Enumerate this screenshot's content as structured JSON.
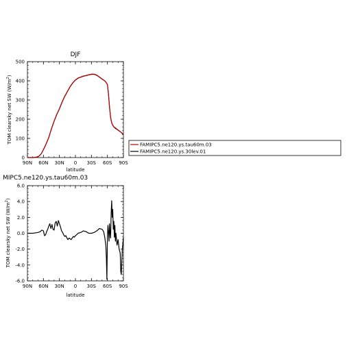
{
  "chart_data": [
    {
      "type": "line",
      "title": "DJF",
      "xlabel": "latitude",
      "ylabel": "TOM clearsky net SW (W/m²)",
      "xlim": [
        90,
        -90
      ],
      "ylim": [
        0,
        500
      ],
      "x_ticks": [
        90,
        60,
        30,
        0,
        -30,
        -60,
        -90
      ],
      "x_tick_labels": [
        "90N",
        "60N",
        "30N",
        "0",
        "30S",
        "60S",
        "90S"
      ],
      "y_ticks": [
        0,
        100,
        200,
        300,
        400,
        500
      ],
      "y_tick_labels": [
        "0",
        "100",
        "200",
        "300",
        "400",
        "500"
      ],
      "grid": false,
      "series": [
        {
          "name": "FAMIPC5.ne120.ys.tau60m.03",
          "color": "#c00000",
          "x": [
            90,
            84,
            78,
            72,
            68,
            64,
            60,
            56,
            50,
            45,
            40,
            35,
            30,
            25,
            20,
            15,
            10,
            5,
            0,
            -5,
            -10,
            -15,
            -20,
            -25,
            -30,
            -35,
            -40,
            -45,
            -50,
            -55,
            -58,
            -60,
            -62,
            -64,
            -66,
            -68,
            -70,
            -72,
            -75,
            -78,
            -82,
            -86,
            -90
          ],
          "values": [
            0,
            0,
            0,
            3,
            8,
            20,
            42,
            65,
            105,
            150,
            190,
            225,
            255,
            290,
            320,
            345,
            370,
            390,
            405,
            415,
            420,
            425,
            428,
            432,
            435,
            435,
            430,
            420,
            410,
            400,
            390,
            380,
            330,
            260,
            210,
            180,
            170,
            160,
            155,
            148,
            140,
            130,
            118
          ]
        },
        {
          "name": "FAMIPC5.ne120.ys.30lev.01",
          "color": "#000000",
          "x": [
            90,
            84,
            78,
            72,
            68,
            64,
            60,
            56,
            50,
            45,
            40,
            35,
            30,
            25,
            20,
            15,
            10,
            5,
            0,
            -5,
            -10,
            -15,
            -20,
            -25,
            -30,
            -35,
            -40,
            -45,
            -50,
            -55,
            -58,
            -60,
            -62,
            -64,
            -66,
            -68,
            -70,
            -72,
            -75,
            -78,
            -82,
            -86,
            -90
          ],
          "values": [
            0,
            0,
            0,
            3,
            8,
            20,
            41,
            64,
            104,
            149,
            189,
            224,
            254,
            289,
            319,
            344,
            369,
            389,
            404,
            414,
            419,
            424,
            427,
            431,
            434,
            434,
            429,
            419,
            409,
            400,
            390,
            380,
            331,
            262,
            208,
            182,
            168,
            160,
            152,
            147,
            139,
            131,
            120
          ]
        }
      ],
      "legend": "right"
    },
    {
      "type": "line",
      "title": "MIPC5.ne120.ys.tau60m.03",
      "xlabel": "latitude",
      "ylabel": "TOM clearsky net SW (W/m²)",
      "xlim": [
        90,
        -90
      ],
      "ylim": [
        -6,
        6
      ],
      "x_ticks": [
        90,
        60,
        30,
        0,
        -30,
        -60,
        -90
      ],
      "x_tick_labels": [
        "90N",
        "60N",
        "30N",
        "0",
        "30S",
        "60S",
        "90S"
      ],
      "y_ticks": [
        -6,
        -4,
        -2,
        0,
        2,
        4,
        6
      ],
      "y_tick_labels": [
        "-6.0",
        "-4.0",
        "-2.0",
        "0.0",
        "2.0",
        "4.0",
        "6.0"
      ],
      "grid": false,
      "series": [
        {
          "color": "#000000",
          "x": [
            90,
            85,
            80,
            75,
            70,
            66,
            63,
            60,
            58,
            56,
            54,
            52,
            50,
            48,
            46,
            44,
            42,
            40,
            38,
            36,
            34,
            32,
            30,
            28,
            26,
            24,
            22,
            20,
            18,
            16,
            14,
            12,
            10,
            8,
            6,
            4,
            2,
            0,
            -2,
            -5,
            -10,
            -15,
            -20,
            -25,
            -30,
            -35,
            -40,
            -45,
            -50,
            -53,
            -55,
            -57,
            -58,
            -59,
            -60,
            -61,
            -62,
            -63,
            -64,
            -65,
            -66,
            -67,
            -68,
            -69,
            -70,
            -71,
            -72,
            -73,
            -74,
            -75,
            -76,
            -78,
            -80,
            -82,
            -84,
            -85,
            -86,
            -87,
            -88,
            -90
          ],
          "values": [
            0,
            0,
            0,
            0.05,
            0.1,
            0.2,
            0.4,
            0.3,
            -0.3,
            -0.2,
            0.2,
            0.5,
            0.9,
            1.2,
            0.6,
            1.1,
            0.5,
            0.4,
            1.3,
            1.5,
            0.9,
            1.6,
            1.2,
            0.8,
            0.3,
            0.1,
            -0.2,
            -0.4,
            -0.3,
            -0.6,
            -0.8,
            -0.6,
            -0.7,
            -0.8,
            -0.6,
            -0.4,
            -0.5,
            -0.3,
            -0.2,
            0.0,
            0.1,
            0.3,
            0.2,
            0.0,
            0.0,
            0.1,
            0.3,
            0.6,
            0.5,
            0.2,
            -0.5,
            -1.5,
            -3.0,
            -5.8,
            -0.5,
            1.0,
            0.2,
            -1.0,
            1.2,
            0.0,
            -0.6,
            2.5,
            4.1,
            2.0,
            3.0,
            0.5,
            1.5,
            -0.5,
            1.0,
            -1.0,
            0.0,
            -1.5,
            -0.8,
            -2.0,
            -2.5,
            -4.8,
            -5.2,
            -3.5,
            -2.0,
            -0.5
          ]
        }
      ]
    }
  ]
}
